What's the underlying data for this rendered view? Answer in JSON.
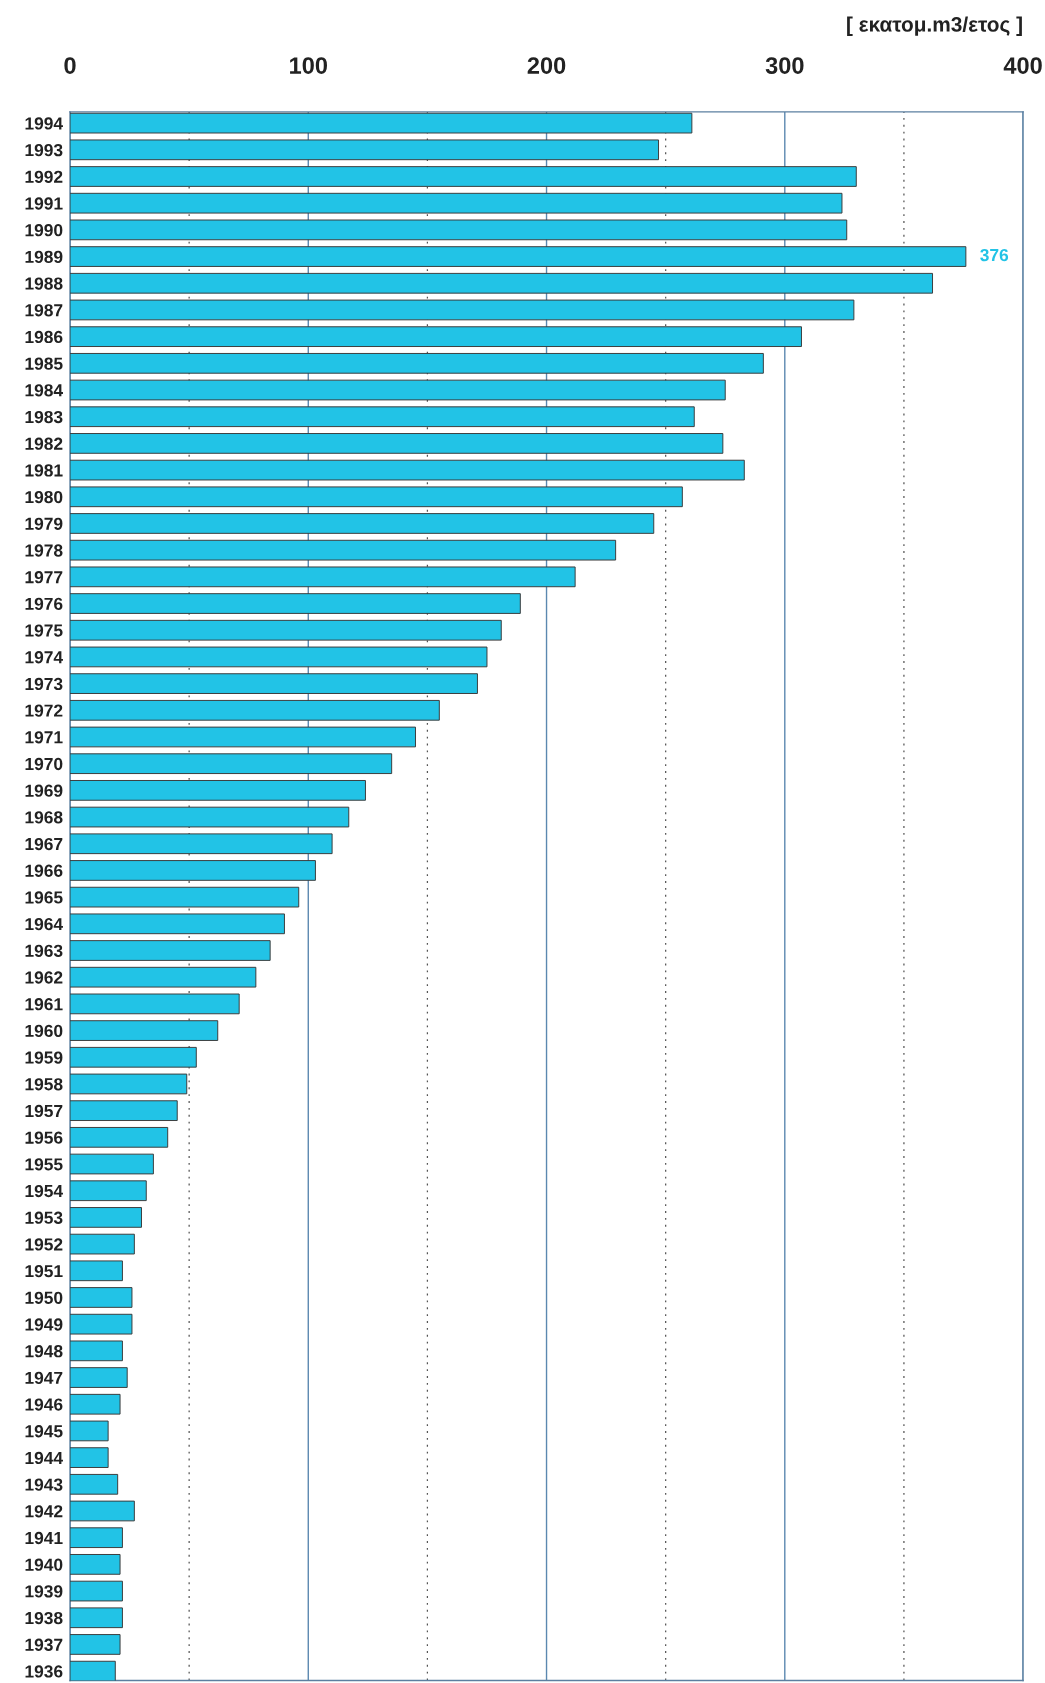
{
  "chart_data": {
    "type": "bar",
    "orientation": "horizontal",
    "xlabel": "[ εκατομ.m3/ετος ]",
    "categories": [
      "1994",
      "1993",
      "1992",
      "1991",
      "1990",
      "1989",
      "1988",
      "1987",
      "1986",
      "1985",
      "1984",
      "1983",
      "1982",
      "1981",
      "1980",
      "1979",
      "1978",
      "1977",
      "1976",
      "1975",
      "1974",
      "1973",
      "1972",
      "1971",
      "1970",
      "1969",
      "1968",
      "1967",
      "1966",
      "1965",
      "1964",
      "1963",
      "1962",
      "1961",
      "1960",
      "1959",
      "1958",
      "1957",
      "1956",
      "1955",
      "1954",
      "1953",
      "1952",
      "1951",
      "1950",
      "1949",
      "1948",
      "1947",
      "1946",
      "1945",
      "1944",
      "1943",
      "1942",
      "1941",
      "1940",
      "1939",
      "1938",
      "1937",
      "1936"
    ],
    "values": [
      261,
      247,
      330,
      324,
      326,
      376,
      362,
      329,
      307,
      291,
      275,
      262,
      274,
      283,
      257,
      245,
      229,
      212,
      189,
      181,
      175,
      171,
      155,
      145,
      135,
      124,
      117,
      110,
      103,
      96,
      90,
      84,
      78,
      71,
      62,
      53,
      49,
      45,
      41,
      35,
      32,
      30,
      27,
      22,
      26,
      26,
      22,
      24,
      21,
      16,
      16,
      20,
      27,
      22,
      21,
      22,
      22,
      21,
      19
    ],
    "value_labels": [
      null,
      null,
      null,
      null,
      null,
      "376",
      null,
      null,
      null,
      null,
      null,
      null,
      null,
      null,
      null,
      null,
      null,
      null,
      null,
      null,
      null,
      null,
      null,
      null,
      null,
      null,
      null,
      null,
      null,
      null,
      null,
      null,
      null,
      null,
      null,
      null,
      null,
      null,
      null,
      null,
      null,
      null,
      null,
      null,
      null,
      null,
      null,
      null,
      null,
      null,
      null,
      null,
      null,
      null,
      null,
      null,
      null,
      null,
      null
    ],
    "color": "#22c3e6",
    "xlim": [
      0,
      400
    ],
    "xticks": [
      0,
      {
        "value": 50,
        "label": null
      },
      100,
      {
        "value": 150,
        "label": null
      },
      200,
      {
        "value": 250,
        "label": null
      },
      300,
      {
        "value": 350,
        "label": null
      },
      400
    ],
    "grid": "x"
  }
}
